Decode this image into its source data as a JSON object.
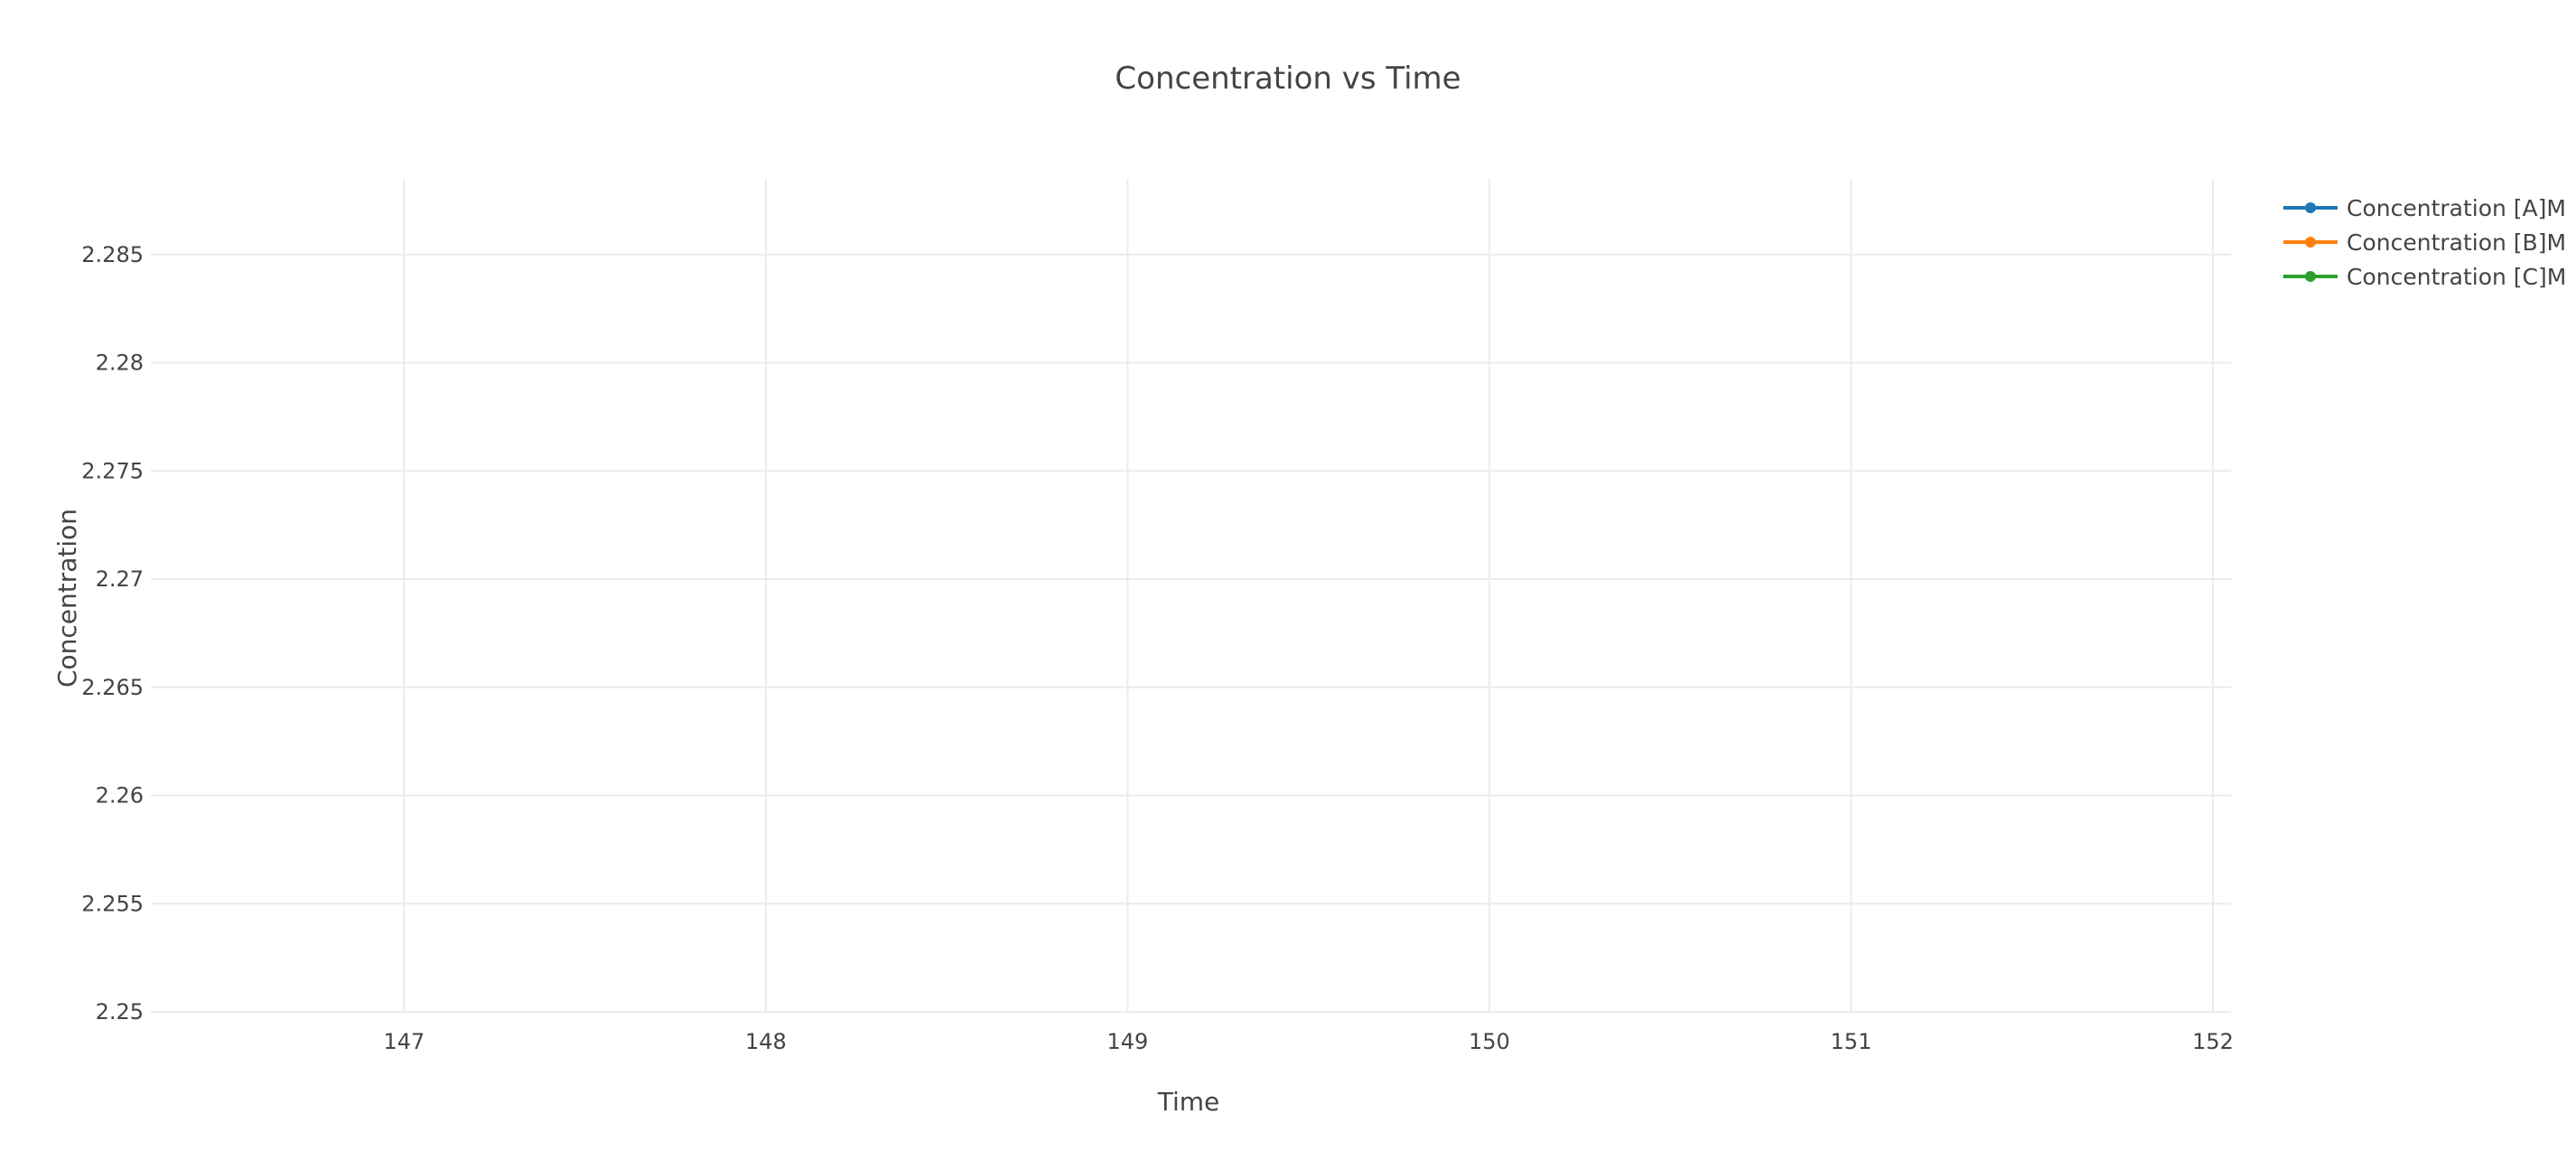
{
  "chart_data": {
    "type": "line",
    "title": "Concentration vs Time",
    "xlabel": "Time",
    "ylabel": "Concentration",
    "xlim": [
      146.3,
      152.05
    ],
    "ylim": [
      2.25,
      2.2885
    ],
    "xticks": [
      147,
      148,
      149,
      150,
      151,
      152
    ],
    "xtick_labels": [
      "147",
      "148",
      "149",
      "150",
      "151",
      "152"
    ],
    "yticks": [
      2.25,
      2.255,
      2.26,
      2.265,
      2.27,
      2.275,
      2.28,
      2.285
    ],
    "ytick_labels": [
      "2.25",
      "2.255",
      "2.26",
      "2.265",
      "2.27",
      "2.275",
      "2.28",
      "2.285"
    ],
    "grid": true,
    "legend_position": "top-right",
    "series": [
      {
        "name": "Concentration [A]M",
        "color": "#1f77b4",
        "mode": "lines+markers",
        "x": [],
        "y": []
      },
      {
        "name": "Concentration [B]M",
        "color": "#ff7f0e",
        "mode": "lines+markers",
        "x": [],
        "y": []
      },
      {
        "name": "Concentration [C]M",
        "color": "#2ca02c",
        "mode": "lines+markers",
        "x": [],
        "y": []
      }
    ]
  }
}
